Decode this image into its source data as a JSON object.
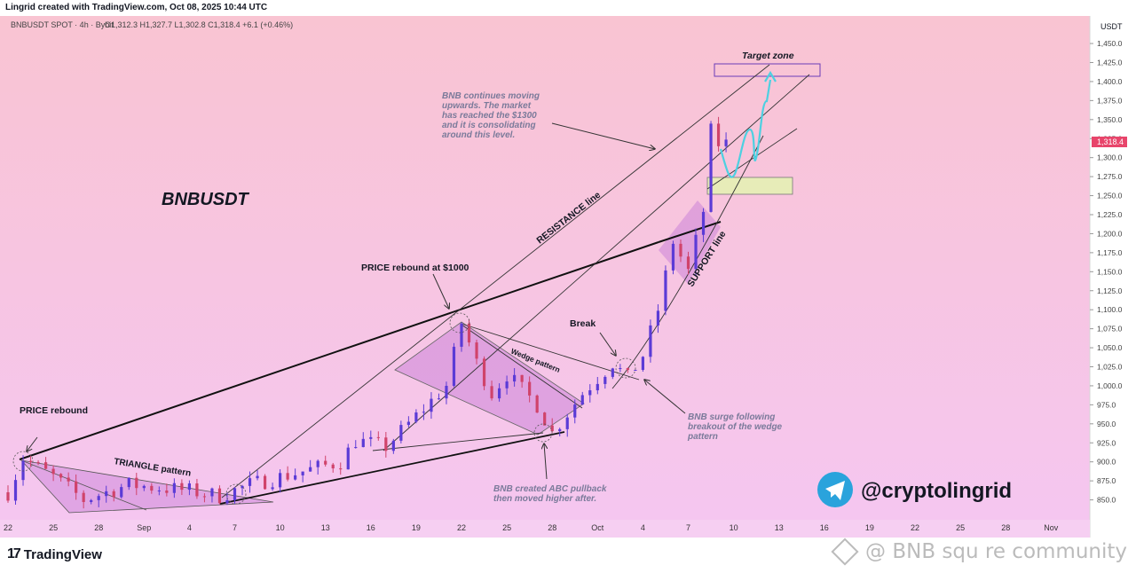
{
  "header": {
    "created_text": "Lingrid created with TradingView.com, Oct 08, 2025 10:44 UTC"
  },
  "legend": {
    "symbol": "BNBUSDT SPOT · 4h · Bybit",
    "ohlc": "O1,312.3  H1,327.7  L1,302.8  C1,318.4  +6.1 (+0.46%)"
  },
  "price_axis": {
    "currency": "USDT",
    "ticks": [
      "1,450.0",
      "1,425.0",
      "1,400.0",
      "1,375.0",
      "1,350.0",
      "1,325.0",
      "1,300.0",
      "1,275.0",
      "1,250.0",
      "1,225.0",
      "1,200.0",
      "1,175.0",
      "1,150.0",
      "1,125.0",
      "1,100.0",
      "1,075.0",
      "1,050.0",
      "1,025.0",
      "1,000.0",
      "975.0",
      "950.0",
      "925.0",
      "900.0",
      "875.0",
      "850.0"
    ],
    "last_price": "1,318.4"
  },
  "time_axis": {
    "ticks": [
      "22",
      "25",
      "28",
      "Sep",
      "4",
      "7",
      "10",
      "13",
      "16",
      "19",
      "22",
      "25",
      "28",
      "Oct",
      "4",
      "7",
      "10",
      "13",
      "16",
      "19",
      "22",
      "25",
      "28",
      "Nov"
    ]
  },
  "annotations": {
    "chart_title": "BNBUSDT",
    "target_zone": "Target zone",
    "bnb_continues": [
      "BNB continues moving",
      "upwards. The market",
      "has reached the $1300",
      "and it is consolidating",
      "around this level."
    ],
    "resistance_line": "RESISTANCE line",
    "support_line": "SUPPORT line",
    "price_rebound_1000": "PRICE rebound at $1000",
    "break": "Break",
    "wedge_pattern": "Wedge pattern",
    "price_rebound": "PRICE rebound",
    "triangle_pattern": "TRIANGLE pattern",
    "abc_pullback": [
      "BNB created ABC pullback",
      "then moved higher after."
    ],
    "surge": [
      "BNB surge following",
      "breakout of the wedge",
      "pattern"
    ]
  },
  "branding": {
    "handle": "@cryptolingrid",
    "tv_logo": "TradingView",
    "tv_mark": "17",
    "watermark": "@ BNB squ   re community"
  },
  "colors": {
    "background_top": "#f9c4d2",
    "background_bottom": "#f5c6f0",
    "candle_up": "#5b3bd6",
    "candle_down": "#d0436b",
    "pattern_fill": "#c77dd8",
    "zone_fill": "#e4f0b4",
    "projection": "#4dd0e1",
    "last_price_tag": "#e8456b",
    "telegram": "#2aa3dc"
  },
  "chart_data": {
    "type": "candlestick",
    "title": "BNBUSDT",
    "symbol": "BNBUSDT SPOT",
    "timeframe": "4h",
    "exchange": "Bybit",
    "ylim": [
      835,
      1470
    ],
    "x_ticks": [
      "22",
      "25",
      "28",
      "Sep",
      "4",
      "7",
      "10",
      "13",
      "16",
      "19",
      "22",
      "25",
      "28",
      "Oct",
      "4",
      "7",
      "10",
      "13",
      "16",
      "19",
      "22",
      "25",
      "28",
      "Nov"
    ],
    "price_path": [
      [
        "Aug 22",
        860
      ],
      [
        "Aug 23",
        905
      ],
      [
        "Aug 25",
        880
      ],
      [
        "Aug 27",
        850
      ],
      [
        "Aug 30",
        870
      ],
      [
        "Sep 3",
        862
      ],
      [
        "Sep 5",
        855
      ],
      [
        "Sep 7",
        870
      ],
      [
        "Sep 10",
        885
      ],
      [
        "Sep 13",
        900
      ],
      [
        "Sep 14",
        928
      ],
      [
        "Sep 16",
        920
      ],
      [
        "Sep 18",
        960
      ],
      [
        "Sep 20",
        1000
      ],
      [
        "Sep 21",
        1083
      ],
      [
        "Sep 22",
        1030
      ],
      [
        "Sep 23",
        990
      ],
      [
        "Sep 24",
        1015
      ],
      [
        "Sep 26",
        975
      ],
      [
        "Sep 27",
        938
      ],
      [
        "Sep 29",
        990
      ],
      [
        "Oct 1",
        1030
      ],
      [
        "Oct 2",
        1010
      ],
      [
        "Oct 3",
        1040
      ],
      [
        "Oct 4",
        1100
      ],
      [
        "Oct 5",
        1190
      ],
      [
        "Oct 6",
        1150
      ],
      [
        "Oct 7",
        1230
      ],
      [
        "Oct 7",
        1350
      ],
      [
        "Oct 8",
        1318.4
      ]
    ],
    "last_ohlc": {
      "open": 1312.3,
      "high": 1327.7,
      "low": 1302.8,
      "close": 1318.4,
      "change": 6.1,
      "change_pct": 0.46
    },
    "target_zone": [
      1403,
      1418
    ],
    "consolidation_zone": [
      1250,
      1272
    ],
    "annotations": [
      "PRICE rebound",
      "TRIANGLE pattern",
      "PRICE rebound at $1000",
      "Wedge pattern",
      "Break",
      "RESISTANCE line",
      "SUPPORT line",
      "Target zone"
    ]
  }
}
